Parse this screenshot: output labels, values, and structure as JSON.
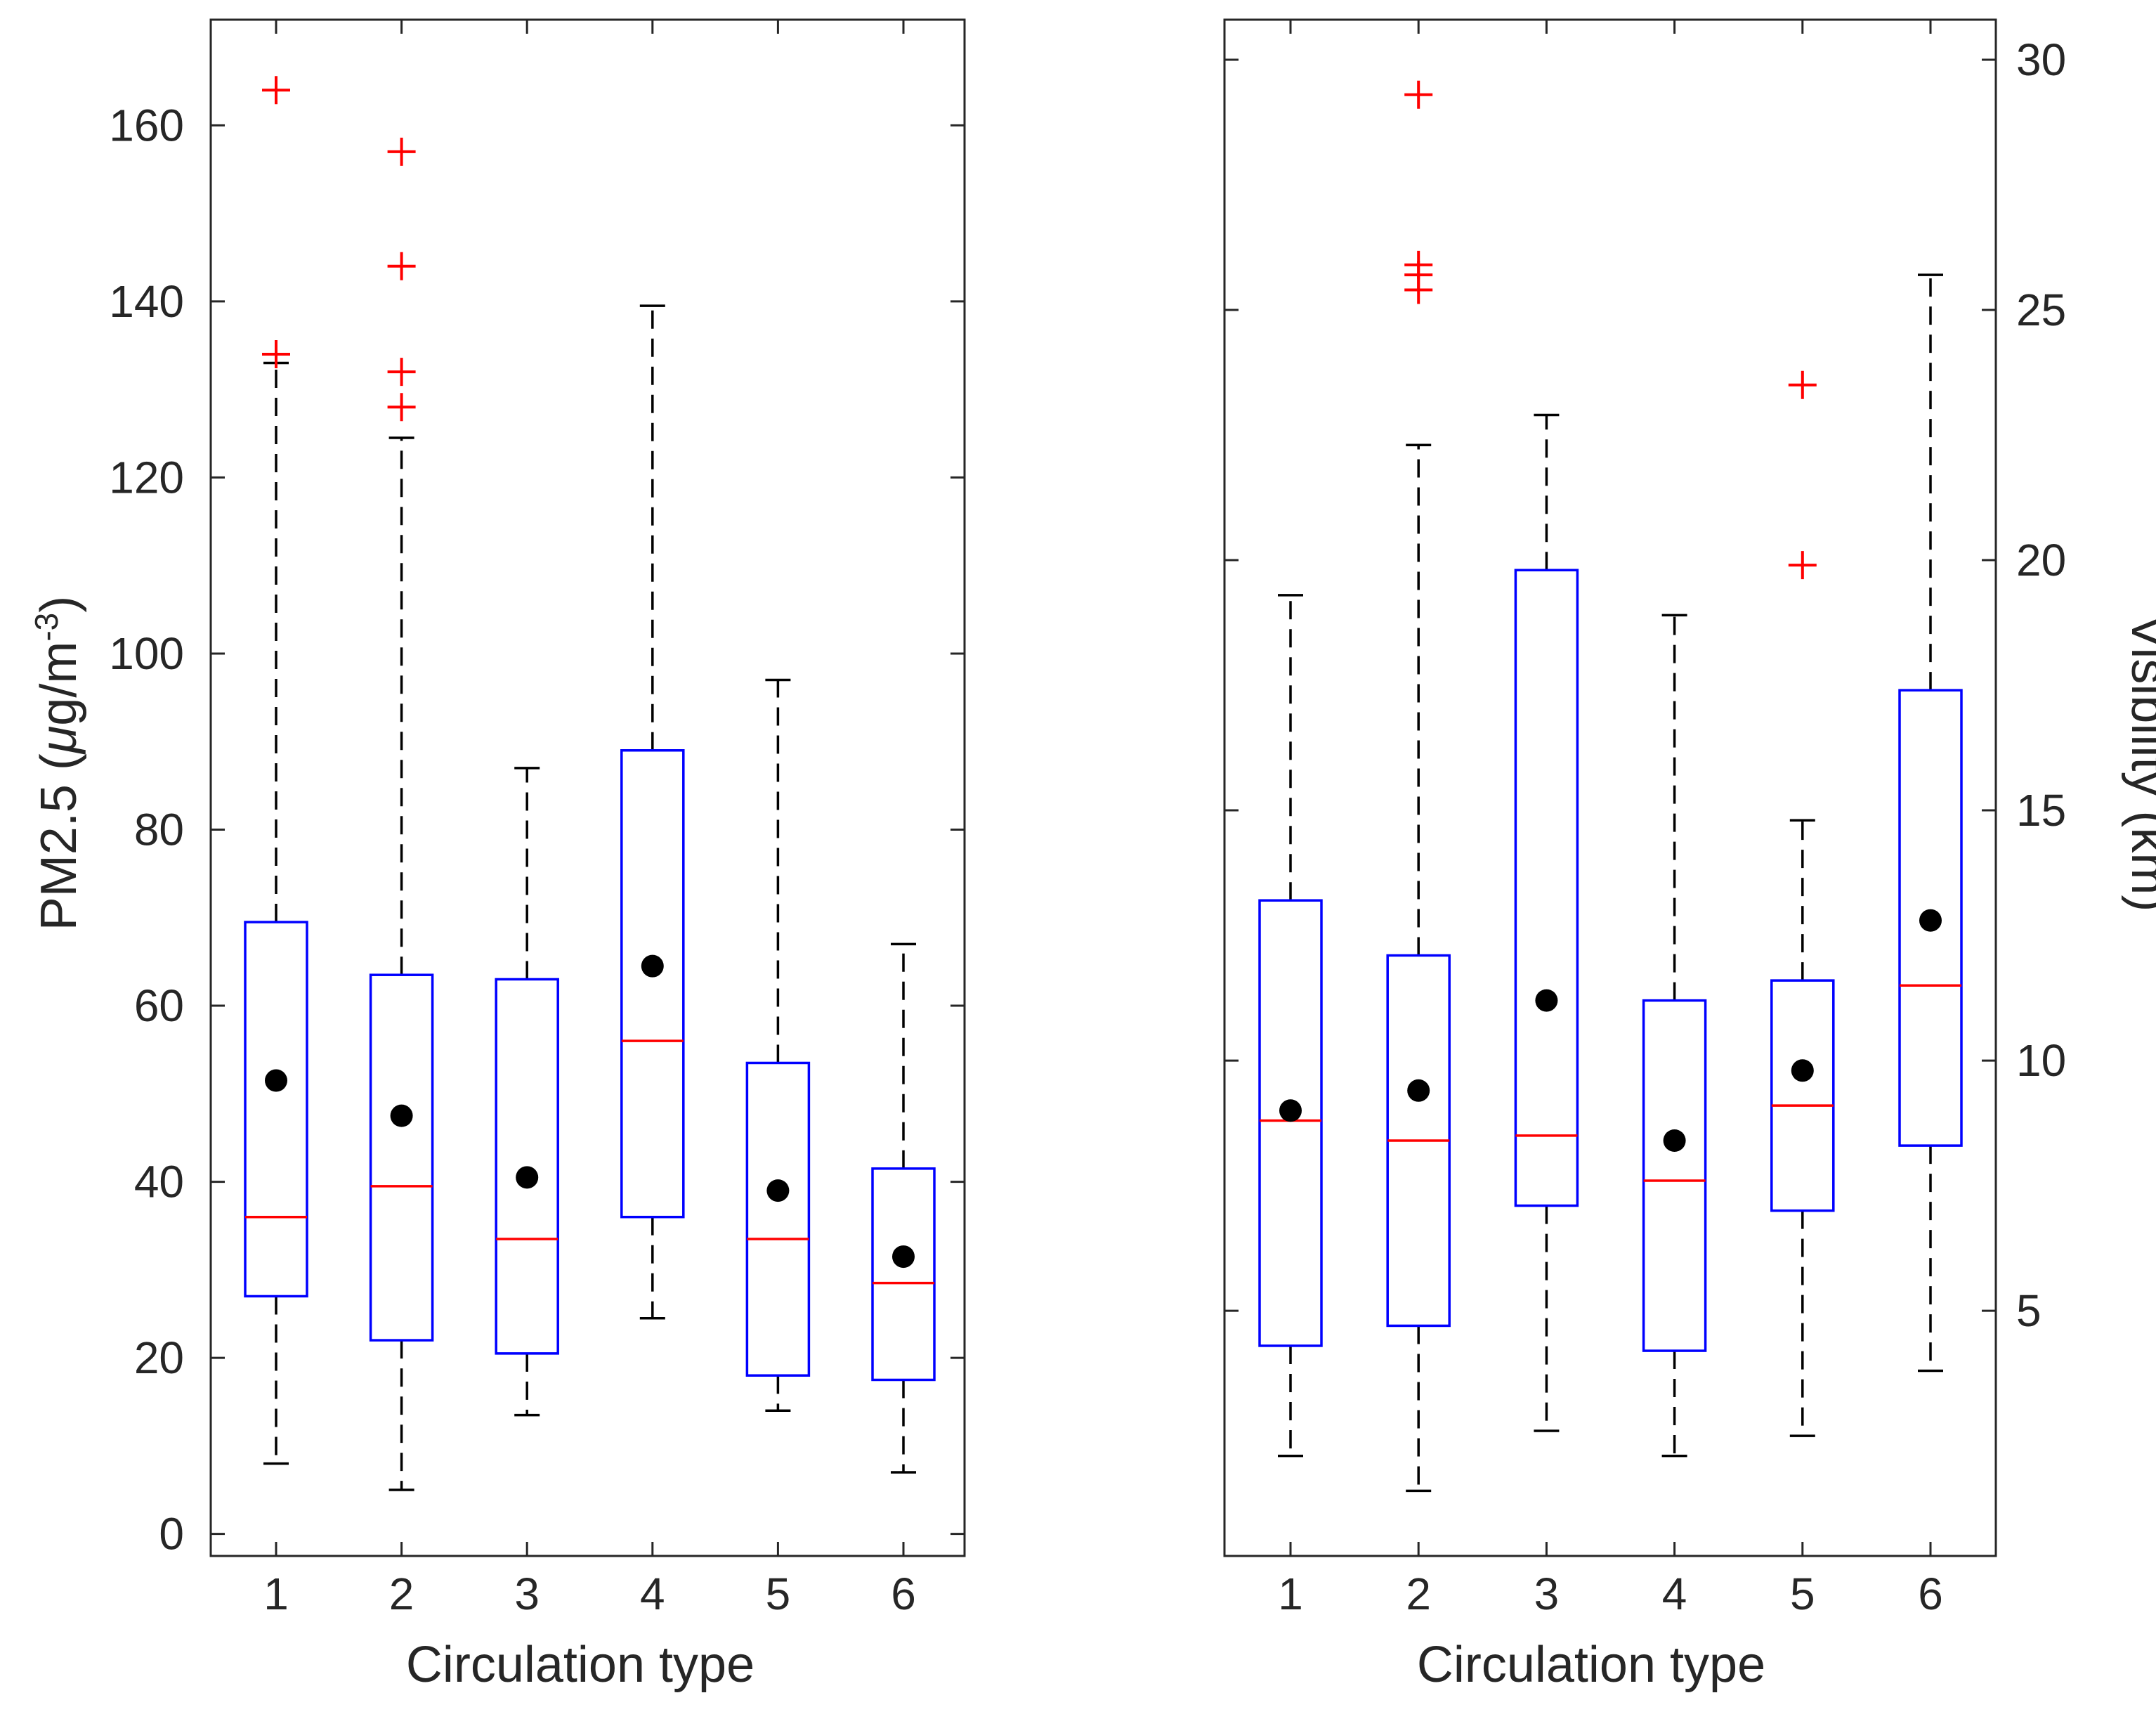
{
  "colors": {
    "box": "#0000ff",
    "median": "#ff0000",
    "outlier": "#ff0000",
    "whisker": "#000000",
    "mean": "#000000",
    "axis": "#262626"
  },
  "chart_data": [
    {
      "type": "box",
      "title": "",
      "xlabel": "Circulation type",
      "ylabel_parts": {
        "main": "PM2.5 (",
        "mu": "μ",
        "unit": "g/m",
        "exp": "-3",
        "close": ")"
      },
      "categories": [
        "1",
        "2",
        "3",
        "4",
        "5",
        "6"
      ],
      "ylim": [
        -2.5,
        172
      ],
      "yticks": [
        0,
        20,
        40,
        60,
        80,
        100,
        120,
        140,
        160
      ],
      "ytick_labels": [
        "0",
        "20",
        "40",
        "60",
        "80",
        "100",
        "120",
        "140",
        "160"
      ],
      "y_axis_side": "left",
      "boxes": [
        {
          "category": "1",
          "whisker_low": 8,
          "q1": 27,
          "median": 36,
          "q3": 69.5,
          "whisker_high": 133,
          "mean": 51.5,
          "outliers": [
            134,
            164
          ]
        },
        {
          "category": "2",
          "whisker_low": 5,
          "q1": 22,
          "median": 39.5,
          "q3": 63.5,
          "whisker_high": 124.5,
          "mean": 47.5,
          "outliers": [
            128,
            132,
            144,
            157
          ]
        },
        {
          "category": "3",
          "whisker_low": 13.5,
          "q1": 20.5,
          "median": 33.5,
          "q3": 63,
          "whisker_high": 87,
          "mean": 40.5,
          "outliers": []
        },
        {
          "category": "4",
          "whisker_low": 24.5,
          "q1": 36,
          "median": 56,
          "q3": 89,
          "whisker_high": 139.5,
          "mean": 64.5,
          "outliers": []
        },
        {
          "category": "5",
          "whisker_low": 14,
          "q1": 18,
          "median": 33.5,
          "q3": 53.5,
          "whisker_high": 97,
          "mean": 39,
          "outliers": []
        },
        {
          "category": "6",
          "whisker_low": 7,
          "q1": 17.5,
          "median": 28.5,
          "q3": 41.5,
          "whisker_high": 67,
          "mean": 31.5,
          "outliers": []
        }
      ]
    },
    {
      "type": "box",
      "title": "",
      "xlabel": "Circulation type",
      "ylabel": "Visibility (km)",
      "categories": [
        "1",
        "2",
        "3",
        "4",
        "5",
        "6"
      ],
      "ylim": [
        0.1,
        30.8
      ],
      "yticks": [
        5,
        10,
        15,
        20,
        25,
        30
      ],
      "ytick_labels": [
        "5",
        "10",
        "15",
        "20",
        "25",
        "30"
      ],
      "y_axis_side": "right",
      "boxes": [
        {
          "category": "1",
          "whisker_low": 2.1,
          "q1": 4.3,
          "median": 8.8,
          "q3": 13.2,
          "whisker_high": 19.3,
          "mean": 9,
          "outliers": []
        },
        {
          "category": "2",
          "whisker_low": 1.4,
          "q1": 4.7,
          "median": 8.4,
          "q3": 12.1,
          "whisker_high": 22.3,
          "mean": 9.4,
          "outliers": [
            25.4,
            25.7,
            25.9,
            29.3
          ]
        },
        {
          "category": "3",
          "whisker_low": 2.6,
          "q1": 7.1,
          "median": 8.5,
          "q3": 19.8,
          "whisker_high": 22.9,
          "mean": 11.2,
          "outliers": []
        },
        {
          "category": "4",
          "whisker_low": 2.1,
          "q1": 4.2,
          "median": 7.6,
          "q3": 11.2,
          "whisker_high": 18.9,
          "mean": 8.4,
          "outliers": []
        },
        {
          "category": "5",
          "whisker_low": 2.5,
          "q1": 7,
          "median": 9.1,
          "q3": 11.6,
          "whisker_high": 14.8,
          "mean": 9.8,
          "outliers": [
            19.9,
            23.5
          ]
        },
        {
          "category": "6",
          "whisker_low": 3.8,
          "q1": 8.3,
          "median": 11.5,
          "q3": 17.4,
          "whisker_high": 25.7,
          "mean": 12.8,
          "outliers": []
        }
      ]
    }
  ]
}
